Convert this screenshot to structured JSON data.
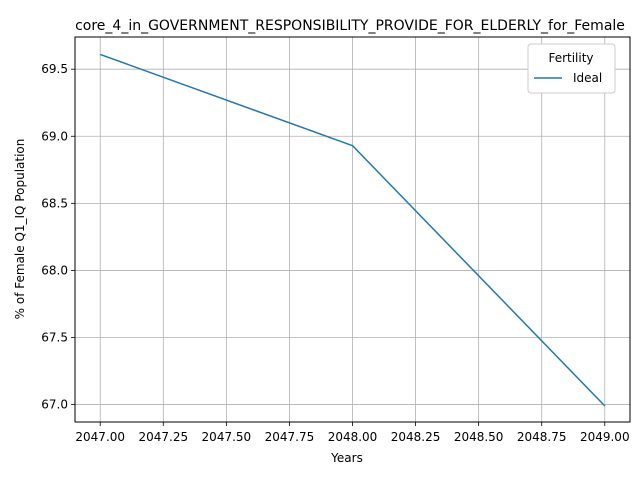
{
  "chart_data": {
    "type": "line",
    "title": "core_4_in_GOVERNMENT_RESPONSIBILITY_PROVIDE_FOR_ELDERLY_for_Female",
    "xlabel": "Years",
    "ylabel": "% of Female Q1_IQ Population",
    "xlim": [
      2046.9,
      2049.1
    ],
    "ylim": [
      66.87,
      69.74
    ],
    "x_ticks": [
      2047.0,
      2047.25,
      2047.5,
      2047.75,
      2048.0,
      2048.25,
      2048.5,
      2048.75,
      2049.0
    ],
    "x_tick_labels": [
      "2047.00",
      "2047.25",
      "2047.50",
      "2047.75",
      "2048.00",
      "2048.25",
      "2048.50",
      "2048.75",
      "2049.00"
    ],
    "y_ticks": [
      67.0,
      67.5,
      68.0,
      68.5,
      69.0,
      69.5
    ],
    "y_tick_labels": [
      "67.0",
      "67.5",
      "68.0",
      "68.5",
      "69.0",
      "69.5"
    ],
    "grid": true,
    "legend": {
      "title": "Fertility",
      "placement": "top-right"
    },
    "series": [
      {
        "name": "Ideal",
        "color": "#1f77b4",
        "x": [
          2047,
          2048,
          2049
        ],
        "y": [
          69.61,
          68.93,
          66.99
        ]
      }
    ]
  }
}
